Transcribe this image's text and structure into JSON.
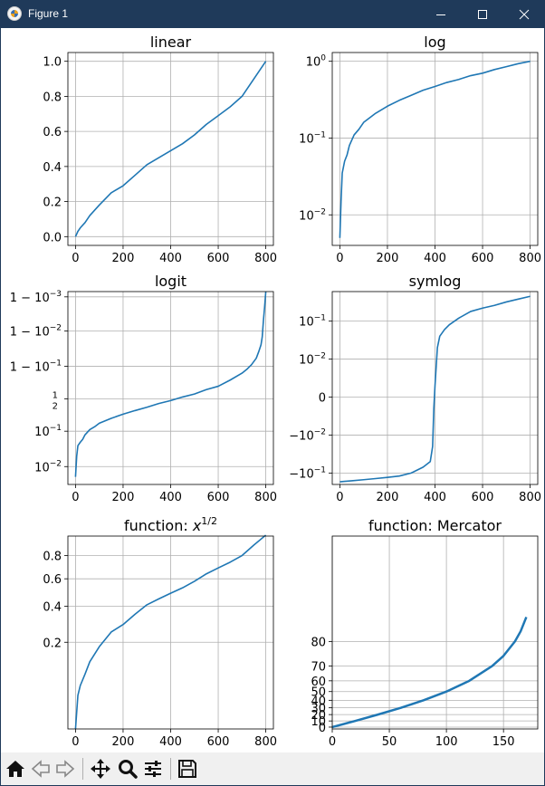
{
  "window": {
    "title": "Figure 1"
  },
  "toolbar": {
    "items": [
      "home-icon",
      "back-icon",
      "forward-icon",
      "pan-icon",
      "zoom-icon",
      "configure-subplots-icon",
      "save-icon"
    ]
  },
  "colors": {
    "line": "#1f77b4",
    "grid": "#b0b0b0",
    "titlebar": "#1f3a5a"
  },
  "chart_data": [
    {
      "type": "line",
      "title": "linear",
      "scale": "linear",
      "grid": true,
      "xlim": [
        -32,
        832
      ],
      "ylim": [
        -0.05,
        1.05
      ],
      "x_ticks": [
        0,
        200,
        400,
        600,
        800
      ],
      "x_tick_labels": [
        "0",
        "200",
        "400",
        "600",
        "800"
      ],
      "y_ticks": [
        0.0,
        0.2,
        0.4,
        0.6,
        0.8,
        1.0
      ],
      "y_tick_labels": [
        "0.0",
        "0.2",
        "0.4",
        "0.6",
        "0.8",
        "1.0"
      ],
      "series": [
        {
          "x": [
            0,
            10,
            20,
            40,
            60,
            100,
            150,
            200,
            250,
            300,
            350,
            400,
            450,
            500,
            550,
            600,
            650,
            700,
            750,
            800
          ],
          "y": [
            0.0,
            0.03,
            0.05,
            0.08,
            0.12,
            0.18,
            0.25,
            0.29,
            0.35,
            0.41,
            0.45,
            0.49,
            0.53,
            0.58,
            0.64,
            0.69,
            0.74,
            0.8,
            0.9,
            1.0
          ]
        }
      ]
    },
    {
      "type": "line",
      "title": "log",
      "scale": "log",
      "grid": true,
      "xlim": [
        -32,
        832
      ],
      "ylim": [
        0.004,
        1.3
      ],
      "x_ticks": [
        0,
        200,
        400,
        600,
        800
      ],
      "x_tick_labels": [
        "0",
        "200",
        "400",
        "600",
        "800"
      ],
      "y_ticks": [
        0.01,
        0.1,
        1
      ],
      "y_tick_labels": [
        {
          "b": "10",
          "e": "−2"
        },
        {
          "b": "10",
          "e": "−1"
        },
        {
          "b": "10",
          "e": "0"
        }
      ],
      "series": [
        {
          "x": [
            0,
            5,
            10,
            20,
            30,
            40,
            60,
            80,
            100,
            150,
            200,
            250,
            300,
            350,
            400,
            450,
            500,
            550,
            600,
            650,
            700,
            750,
            800
          ],
          "y": [
            0.005,
            0.015,
            0.035,
            0.05,
            0.06,
            0.08,
            0.11,
            0.13,
            0.16,
            0.21,
            0.26,
            0.31,
            0.36,
            0.42,
            0.47,
            0.53,
            0.58,
            0.65,
            0.7,
            0.78,
            0.85,
            0.93,
            1.0
          ]
        }
      ]
    },
    {
      "type": "line",
      "title": "logit",
      "scale": "logit",
      "grid": true,
      "xlim": [
        -32,
        832
      ],
      "ylim": [
        0.003,
        0.9993
      ],
      "x_ticks": [
        0,
        200,
        400,
        600,
        800
      ],
      "x_tick_labels": [
        "0",
        "200",
        "400",
        "600",
        "800"
      ],
      "y_ticks": [
        0.01,
        0.1,
        0.5,
        0.9,
        0.99,
        0.999
      ],
      "y_tick_labels": [
        {
          "b": "10",
          "e": "−2"
        },
        {
          "b": "10",
          "e": "−1"
        },
        {
          "frac": "1/2"
        },
        {
          "p": "1 − ",
          "b": "10",
          "e": "−1"
        },
        {
          "p": "1 − ",
          "b": "10",
          "e": "−2"
        },
        {
          "p": "1 − ",
          "b": "10",
          "e": "−3"
        }
      ],
      "series": [
        {
          "x": [
            0,
            5,
            10,
            20,
            30,
            40,
            60,
            80,
            100,
            150,
            200,
            250,
            300,
            350,
            400,
            450,
            500,
            550,
            600,
            650,
            700,
            720,
            740,
            760,
            770,
            780,
            785,
            790,
            795,
            800
          ],
          "y": [
            0.005,
            0.02,
            0.04,
            0.05,
            0.06,
            0.08,
            0.11,
            0.13,
            0.16,
            0.21,
            0.26,
            0.31,
            0.36,
            0.42,
            0.47,
            0.53,
            0.58,
            0.65,
            0.7,
            0.78,
            0.85,
            0.88,
            0.91,
            0.94,
            0.96,
            0.975,
            0.985,
            0.995,
            0.998,
            0.9993
          ]
        }
      ]
    },
    {
      "type": "line",
      "title": "symlog",
      "scale": "symlog",
      "linthresh": 0.01,
      "grid": true,
      "xlim": [
        -32,
        832
      ],
      "ylim": [
        -0.2,
        0.6
      ],
      "x_ticks": [
        0,
        200,
        400,
        600,
        800
      ],
      "x_tick_labels": [
        "0",
        "200",
        "400",
        "600",
        "800"
      ],
      "y_ticks": [
        -0.1,
        -0.01,
        0,
        0.01,
        0.1
      ],
      "y_tick_labels": [
        {
          "p": "−",
          "b": "10",
          "e": "−1"
        },
        {
          "p": "−",
          "b": "10",
          "e": "−2"
        },
        {
          "t": "0"
        },
        {
          "b": "10",
          "e": "−2"
        },
        {
          "b": "10",
          "e": "−1"
        }
      ],
      "series": [
        {
          "x": [
            0,
            50,
            100,
            150,
            200,
            250,
            300,
            350,
            380,
            390,
            395,
            400,
            405,
            410,
            420,
            440,
            460,
            500,
            550,
            600,
            650,
            700,
            750,
            800
          ],
          "y": [
            -0.17,
            -0.16,
            -0.15,
            -0.14,
            -0.13,
            -0.12,
            -0.1,
            -0.07,
            -0.05,
            -0.02,
            -0.003,
            0.003,
            0.008,
            0.02,
            0.04,
            0.06,
            0.08,
            0.12,
            0.18,
            0.22,
            0.26,
            0.32,
            0.38,
            0.45
          ]
        }
      ]
    },
    {
      "type": "line",
      "title": "function: ",
      "title_math": "x",
      "title_sup": "1/2",
      "scale": "sqrt",
      "grid": true,
      "xlim": [
        -32,
        832
      ],
      "ylim": [
        0.0,
        0.99
      ],
      "x_ticks": [
        0,
        200,
        400,
        600,
        800
      ],
      "x_tick_labels": [
        "0",
        "200",
        "400",
        "600",
        "800"
      ],
      "y_ticks": [
        0.2,
        0.4,
        0.6,
        0.8
      ],
      "y_tick_labels": [
        "0.2",
        "0.4",
        "0.6",
        "0.8"
      ],
      "series": [
        {
          "x": [
            0,
            10,
            20,
            40,
            60,
            100,
            150,
            200,
            250,
            300,
            350,
            400,
            450,
            500,
            550,
            600,
            650,
            700,
            750,
            800
          ],
          "y": [
            0.0,
            0.03,
            0.05,
            0.08,
            0.12,
            0.18,
            0.25,
            0.29,
            0.35,
            0.41,
            0.45,
            0.49,
            0.53,
            0.58,
            0.64,
            0.69,
            0.74,
            0.8,
            0.9,
            1.0
          ]
        }
      ]
    },
    {
      "type": "line",
      "title": "function: Mercator",
      "scale": "mercator",
      "grid": true,
      "xlim": [
        0,
        180
      ],
      "ylim": [
        -3,
        89.5
      ],
      "x_ticks": [
        0,
        50,
        100,
        150
      ],
      "x_tick_labels": [
        "0",
        "50",
        "100",
        "150"
      ],
      "y_ticks": [
        0,
        10,
        20,
        30,
        40,
        50,
        60,
        70,
        80
      ],
      "y_tick_labels": [
        "0",
        "10",
        "20",
        "30",
        "40",
        "50",
        "60",
        "70",
        "80"
      ],
      "series": [
        {
          "x": [
            0,
            20,
            40,
            60,
            80,
            100,
            120,
            140,
            150,
            160,
            165,
            170
          ],
          "y": [
            0,
            10,
            20,
            30,
            40,
            50,
            60,
            70,
            75,
            80,
            82.5,
            85
          ]
        }
      ]
    }
  ]
}
